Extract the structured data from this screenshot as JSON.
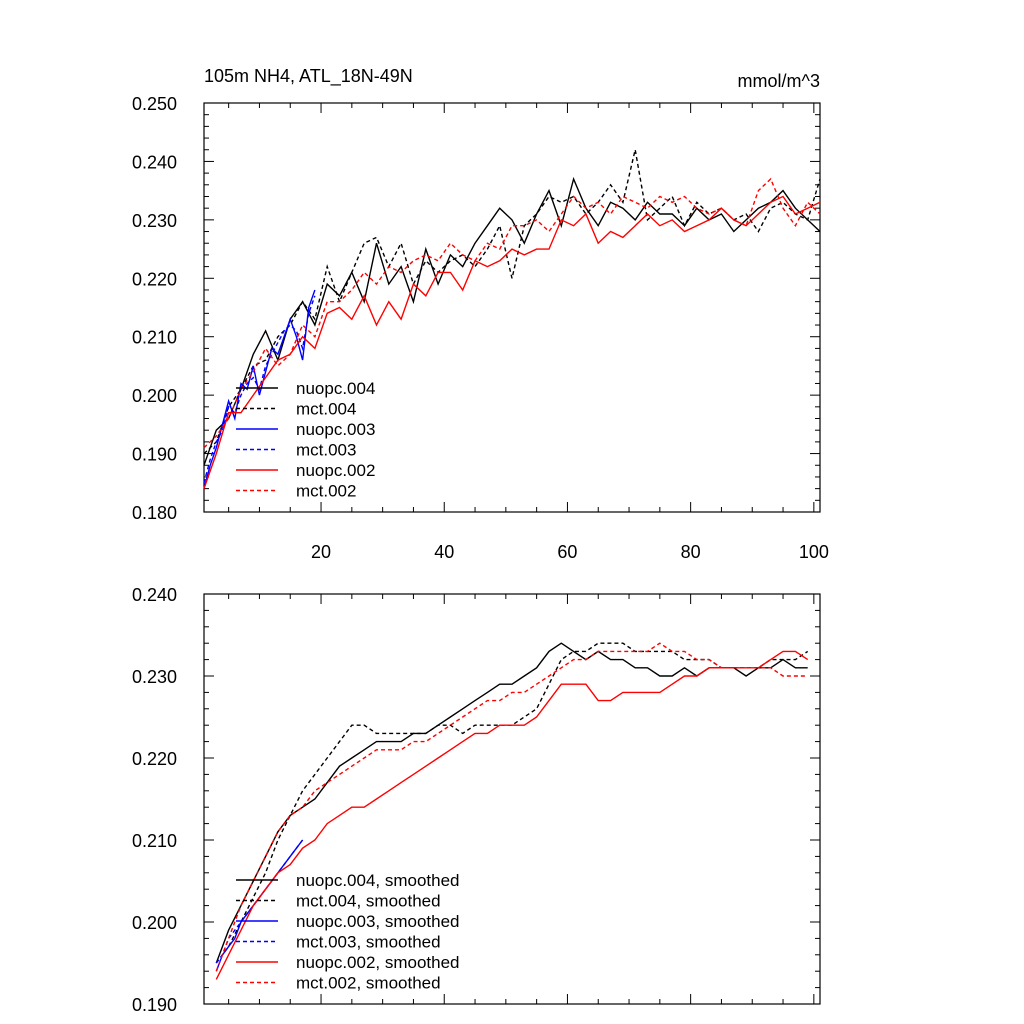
{
  "chart_data": [
    {
      "type": "line",
      "title": "105m NH4, ATL_18N-49N",
      "units": "mmol/m^3",
      "xlim": [
        1,
        101
      ],
      "ylim": [
        0.18,
        0.25
      ],
      "xticks": [
        20,
        40,
        60,
        80,
        100
      ],
      "yticks": [
        0.18,
        0.19,
        0.2,
        0.21,
        0.22,
        0.23,
        0.24,
        0.25
      ],
      "ytick_labels": [
        "0.180",
        "0.190",
        "0.200",
        "0.210",
        "0.220",
        "0.230",
        "0.240",
        "0.250"
      ],
      "legend": "bottom-left",
      "series": [
        {
          "name": "nuopc.004",
          "color": "#000000",
          "dash": "solid",
          "x": [
            1,
            3,
            5,
            7,
            9,
            11,
            13,
            15,
            17,
            19,
            21,
            23,
            25,
            27,
            29,
            31,
            33,
            35,
            37,
            39,
            41,
            43,
            45,
            47,
            49,
            51,
            53,
            55,
            57,
            59,
            61,
            63,
            65,
            67,
            69,
            71,
            73,
            75,
            77,
            79,
            81,
            83,
            85,
            87,
            89,
            91,
            93,
            95,
            97,
            99,
            101
          ],
          "values": [
            0.188,
            0.194,
            0.196,
            0.201,
            0.207,
            0.211,
            0.206,
            0.213,
            0.216,
            0.212,
            0.219,
            0.217,
            0.221,
            0.216,
            0.226,
            0.219,
            0.222,
            0.216,
            0.225,
            0.219,
            0.224,
            0.222,
            0.226,
            0.229,
            0.232,
            0.23,
            0.226,
            0.231,
            0.235,
            0.229,
            0.237,
            0.232,
            0.229,
            0.233,
            0.232,
            0.23,
            0.233,
            0.231,
            0.231,
            0.229,
            0.232,
            0.23,
            0.231,
            0.228,
            0.23,
            0.232,
            0.233,
            0.235,
            0.232,
            0.23,
            0.228
          ]
        },
        {
          "name": "mct.004",
          "color": "#000000",
          "dash": "dashed",
          "x": [
            1,
            3,
            5,
            7,
            9,
            11,
            13,
            15,
            17,
            19,
            21,
            23,
            25,
            27,
            29,
            31,
            33,
            35,
            37,
            39,
            41,
            43,
            45,
            47,
            49,
            51,
            53,
            55,
            57,
            59,
            61,
            63,
            65,
            67,
            69,
            71,
            73,
            75,
            77,
            79,
            81,
            83,
            85,
            87,
            89,
            91,
            93,
            95,
            97,
            99,
            101
          ],
          "values": [
            0.19,
            0.192,
            0.198,
            0.201,
            0.205,
            0.206,
            0.21,
            0.212,
            0.216,
            0.213,
            0.222,
            0.216,
            0.221,
            0.226,
            0.227,
            0.222,
            0.226,
            0.219,
            0.223,
            0.221,
            0.223,
            0.224,
            0.222,
            0.225,
            0.229,
            0.22,
            0.229,
            0.231,
            0.234,
            0.233,
            0.234,
            0.231,
            0.233,
            0.236,
            0.233,
            0.242,
            0.23,
            0.232,
            0.234,
            0.229,
            0.233,
            0.231,
            0.232,
            0.23,
            0.231,
            0.228,
            0.232,
            0.233,
            0.231,
            0.23,
            0.237
          ]
        },
        {
          "name": "nuopc.003",
          "color": "#0000ff",
          "dash": "solid",
          "x": [
            1,
            2,
            3,
            4,
            5,
            6,
            7,
            8,
            9,
            10,
            11,
            12,
            13,
            14,
            15,
            16,
            17,
            18,
            19
          ],
          "values": [
            0.184,
            0.188,
            0.191,
            0.195,
            0.199,
            0.196,
            0.202,
            0.201,
            0.205,
            0.2,
            0.204,
            0.208,
            0.207,
            0.21,
            0.213,
            0.21,
            0.206,
            0.215,
            0.218
          ]
        },
        {
          "name": "mct.003",
          "color": "#0000ff",
          "dash": "dashed",
          "x": [
            1,
            2,
            3,
            4,
            5,
            6,
            7,
            8,
            9,
            10,
            11,
            12,
            13,
            14,
            15,
            16,
            17,
            18,
            19
          ],
          "values": [
            0.185,
            0.189,
            0.192,
            0.194,
            0.198,
            0.197,
            0.2,
            0.202,
            0.203,
            0.201,
            0.205,
            0.207,
            0.209,
            0.211,
            0.212,
            0.211,
            0.208,
            0.214,
            0.217
          ]
        },
        {
          "name": "nuopc.002",
          "color": "#ff0000",
          "dash": "solid",
          "x": [
            1,
            3,
            5,
            7,
            9,
            11,
            13,
            15,
            17,
            19,
            21,
            23,
            25,
            27,
            29,
            31,
            33,
            35,
            37,
            39,
            41,
            43,
            45,
            47,
            49,
            51,
            53,
            55,
            57,
            59,
            61,
            63,
            65,
            67,
            69,
            71,
            73,
            75,
            77,
            79,
            81,
            83,
            85,
            87,
            89,
            91,
            93,
            95,
            97,
            99,
            101
          ],
          "values": [
            0.184,
            0.19,
            0.197,
            0.197,
            0.2,
            0.203,
            0.206,
            0.207,
            0.21,
            0.208,
            0.214,
            0.215,
            0.213,
            0.217,
            0.212,
            0.216,
            0.213,
            0.219,
            0.217,
            0.221,
            0.221,
            0.218,
            0.223,
            0.222,
            0.223,
            0.225,
            0.224,
            0.225,
            0.225,
            0.23,
            0.229,
            0.231,
            0.226,
            0.228,
            0.227,
            0.229,
            0.231,
            0.229,
            0.23,
            0.228,
            0.229,
            0.23,
            0.232,
            0.23,
            0.229,
            0.231,
            0.233,
            0.234,
            0.231,
            0.232,
            0.233
          ]
        },
        {
          "name": "mct.002",
          "color": "#ff0000",
          "dash": "dashed",
          "x": [
            1,
            3,
            5,
            7,
            9,
            11,
            13,
            15,
            17,
            19,
            21,
            23,
            25,
            27,
            29,
            31,
            33,
            35,
            37,
            39,
            41,
            43,
            45,
            47,
            49,
            51,
            53,
            55,
            57,
            59,
            61,
            63,
            65,
            67,
            69,
            71,
            73,
            75,
            77,
            79,
            81,
            83,
            85,
            87,
            89,
            91,
            93,
            95,
            97,
            99,
            101
          ],
          "values": [
            0.191,
            0.193,
            0.196,
            0.201,
            0.204,
            0.208,
            0.205,
            0.207,
            0.212,
            0.21,
            0.216,
            0.216,
            0.218,
            0.221,
            0.219,
            0.222,
            0.221,
            0.223,
            0.224,
            0.223,
            0.226,
            0.224,
            0.223,
            0.226,
            0.225,
            0.229,
            0.229,
            0.23,
            0.228,
            0.231,
            0.234,
            0.232,
            0.233,
            0.231,
            0.234,
            0.233,
            0.232,
            0.234,
            0.233,
            0.234,
            0.232,
            0.231,
            0.232,
            0.23,
            0.229,
            0.235,
            0.237,
            0.232,
            0.229,
            0.233,
            0.231
          ]
        }
      ]
    },
    {
      "type": "line",
      "title": "",
      "xlim": [
        1,
        101
      ],
      "ylim": [
        0.19,
        0.24
      ],
      "xticks": [
        20,
        40,
        60,
        80,
        100
      ],
      "yticks": [
        0.19,
        0.2,
        0.21,
        0.22,
        0.23,
        0.24
      ],
      "ytick_labels": [
        "0.190",
        "0.200",
        "0.210",
        "0.220",
        "0.230",
        "0.240"
      ],
      "legend": "bottom-left",
      "series": [
        {
          "name": "nuopc.004, smoothed",
          "color": "#000000",
          "dash": "solid",
          "x": [
            3,
            5,
            7,
            9,
            11,
            13,
            15,
            17,
            19,
            21,
            23,
            25,
            27,
            29,
            31,
            33,
            35,
            37,
            39,
            41,
            43,
            45,
            47,
            49,
            51,
            53,
            55,
            57,
            59,
            61,
            63,
            65,
            67,
            69,
            71,
            73,
            75,
            77,
            79,
            81,
            83,
            85,
            87,
            89,
            91,
            93,
            95,
            97,
            99
          ],
          "values": [
            0.195,
            0.199,
            0.202,
            0.205,
            0.208,
            0.211,
            0.213,
            0.214,
            0.215,
            0.217,
            0.219,
            0.22,
            0.221,
            0.222,
            0.222,
            0.222,
            0.223,
            0.223,
            0.224,
            0.225,
            0.226,
            0.227,
            0.228,
            0.229,
            0.229,
            0.23,
            0.231,
            0.233,
            0.234,
            0.233,
            0.232,
            0.233,
            0.232,
            0.232,
            0.231,
            0.231,
            0.23,
            0.23,
            0.231,
            0.23,
            0.231,
            0.231,
            0.231,
            0.23,
            0.231,
            0.231,
            0.232,
            0.231,
            0.231
          ]
        },
        {
          "name": "mct.004, smoothed",
          "color": "#000000",
          "dash": "dashed",
          "x": [
            3,
            5,
            7,
            9,
            11,
            13,
            15,
            17,
            19,
            21,
            23,
            25,
            27,
            29,
            31,
            33,
            35,
            37,
            39,
            41,
            43,
            45,
            47,
            49,
            51,
            53,
            55,
            57,
            59,
            61,
            63,
            65,
            67,
            69,
            71,
            73,
            75,
            77,
            79,
            81,
            83,
            85,
            87,
            89,
            91,
            93,
            95,
            97,
            99
          ],
          "values": [
            0.195,
            0.197,
            0.2,
            0.203,
            0.206,
            0.21,
            0.213,
            0.216,
            0.218,
            0.22,
            0.222,
            0.224,
            0.224,
            0.223,
            0.223,
            0.223,
            0.223,
            0.223,
            0.224,
            0.224,
            0.223,
            0.224,
            0.224,
            0.224,
            0.224,
            0.225,
            0.226,
            0.229,
            0.232,
            0.233,
            0.233,
            0.234,
            0.234,
            0.234,
            0.233,
            0.233,
            0.233,
            0.233,
            0.232,
            0.232,
            0.232,
            0.231,
            0.231,
            0.231,
            0.231,
            0.232,
            0.232,
            0.232,
            0.233
          ]
        },
        {
          "name": "nuopc.003, smoothed",
          "color": "#0000ff",
          "dash": "solid",
          "x": [
            3,
            4,
            5,
            6,
            7,
            8,
            9,
            10,
            11,
            12,
            13,
            14,
            15,
            16,
            17
          ],
          "values": [
            0.194,
            0.196,
            0.197,
            0.198,
            0.2,
            0.201,
            0.202,
            0.203,
            0.204,
            0.205,
            0.206,
            0.207,
            0.208,
            0.209,
            0.21
          ]
        },
        {
          "name": "mct.003, smoothed",
          "color": "#0000ff",
          "dash": "dashed",
          "x": [
            3,
            4,
            5,
            6,
            7,
            8,
            9,
            10,
            11,
            12,
            13,
            14,
            15,
            16,
            17
          ],
          "values": [
            0.195,
            0.196,
            0.198,
            0.199,
            0.2,
            0.201,
            0.202,
            0.203,
            0.204,
            0.205,
            0.206,
            0.207,
            0.208,
            0.209,
            0.21
          ]
        },
        {
          "name": "nuopc.002, smoothed",
          "color": "#ff0000",
          "dash": "solid",
          "x": [
            3,
            5,
            7,
            9,
            11,
            13,
            15,
            17,
            19,
            21,
            23,
            25,
            27,
            29,
            31,
            33,
            35,
            37,
            39,
            41,
            43,
            45,
            47,
            49,
            51,
            53,
            55,
            57,
            59,
            61,
            63,
            65,
            67,
            69,
            71,
            73,
            75,
            77,
            79,
            81,
            83,
            85,
            87,
            89,
            91,
            93,
            95,
            97,
            99
          ],
          "values": [
            0.193,
            0.196,
            0.199,
            0.202,
            0.204,
            0.206,
            0.207,
            0.209,
            0.21,
            0.212,
            0.213,
            0.214,
            0.214,
            0.215,
            0.216,
            0.217,
            0.218,
            0.219,
            0.22,
            0.221,
            0.222,
            0.223,
            0.223,
            0.224,
            0.224,
            0.224,
            0.225,
            0.227,
            0.229,
            0.229,
            0.229,
            0.227,
            0.227,
            0.228,
            0.228,
            0.228,
            0.228,
            0.229,
            0.23,
            0.23,
            0.231,
            0.231,
            0.231,
            0.231,
            0.231,
            0.232,
            0.233,
            0.233,
            0.232
          ]
        },
        {
          "name": "mct.002, smoothed",
          "color": "#ff0000",
          "dash": "dashed",
          "x": [
            3,
            5,
            7,
            9,
            11,
            13,
            15,
            17,
            19,
            21,
            23,
            25,
            27,
            29,
            31,
            33,
            35,
            37,
            39,
            41,
            43,
            45,
            47,
            49,
            51,
            53,
            55,
            57,
            59,
            61,
            63,
            65,
            67,
            69,
            71,
            73,
            75,
            77,
            79,
            81,
            83,
            85,
            87,
            89,
            91,
            93,
            95,
            97,
            99
          ],
          "values": [
            0.194,
            0.198,
            0.202,
            0.205,
            0.208,
            0.211,
            0.213,
            0.214,
            0.216,
            0.217,
            0.218,
            0.219,
            0.22,
            0.221,
            0.221,
            0.221,
            0.222,
            0.222,
            0.223,
            0.224,
            0.225,
            0.226,
            0.227,
            0.227,
            0.228,
            0.228,
            0.229,
            0.23,
            0.231,
            0.232,
            0.232,
            0.233,
            0.233,
            0.233,
            0.233,
            0.233,
            0.234,
            0.233,
            0.233,
            0.232,
            0.232,
            0.231,
            0.231,
            0.231,
            0.231,
            0.231,
            0.23,
            0.23,
            0.23
          ]
        }
      ]
    }
  ]
}
